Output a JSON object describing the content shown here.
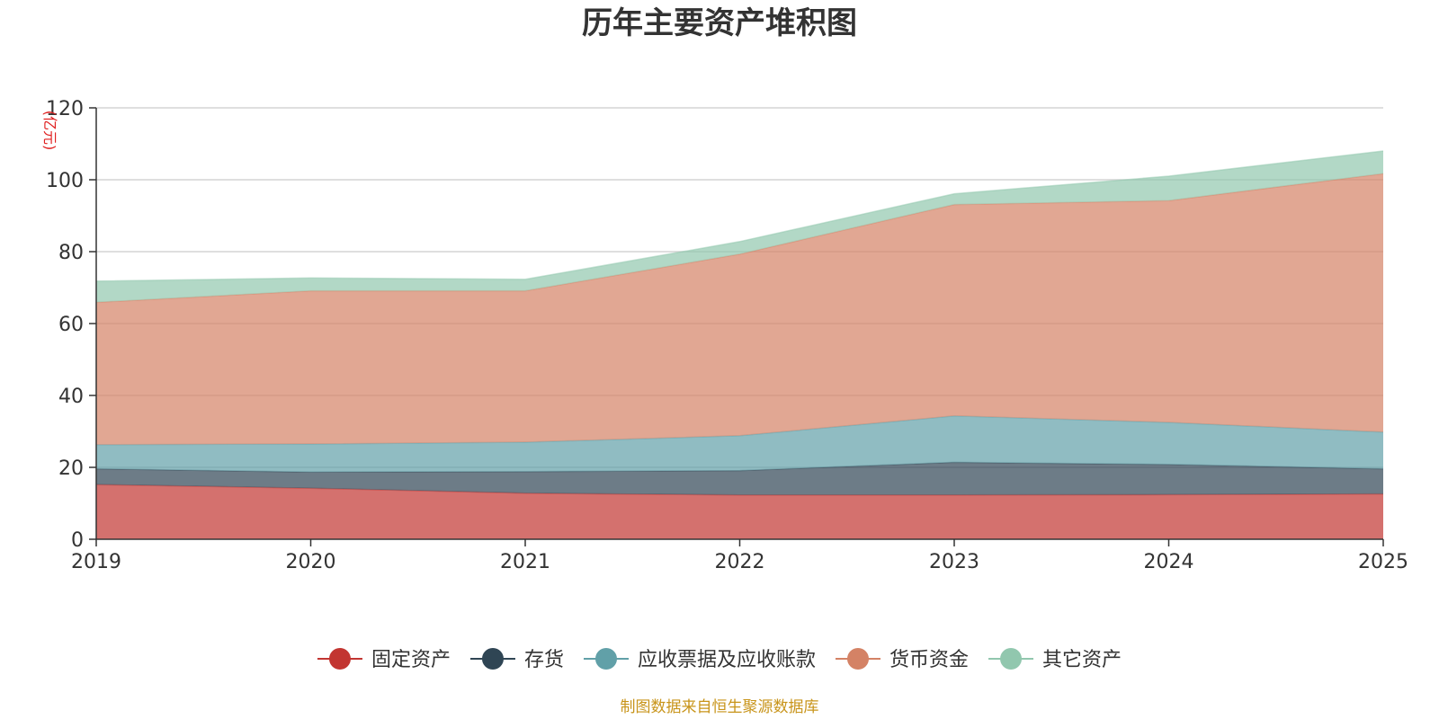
{
  "chart_data": {
    "type": "area",
    "stacked": true,
    "title": "历年主要资产堆积图",
    "unit": "(亿元)",
    "categories": [
      "2019",
      "2020",
      "2021",
      "2022",
      "2023",
      "2024",
      "2025"
    ],
    "ylim": [
      0,
      120
    ],
    "yticks": [
      "0",
      "20",
      "40",
      "60",
      "80",
      "100",
      "120"
    ],
    "grid": true,
    "legend_position": "bottom",
    "series": [
      {
        "name": "固定资产",
        "color": "#c23531",
        "values": [
          15.2,
          14.2,
          12.8,
          12.3,
          12.3,
          12.4,
          12.6
        ]
      },
      {
        "name": "存货",
        "color": "#2f4554",
        "values": [
          4.4,
          4.5,
          6.0,
          6.8,
          9.1,
          8.4,
          7.0
        ]
      },
      {
        "name": "应收票据及应收账款",
        "color": "#61a0a8",
        "values": [
          6.7,
          7.8,
          8.2,
          9.7,
          12.9,
          11.7,
          10.2
        ]
      },
      {
        "name": "货币资金",
        "color": "#d48265",
        "values": [
          39.6,
          42.6,
          42.1,
          50.5,
          58.8,
          61.7,
          71.9
        ]
      },
      {
        "name": "其它资产",
        "color": "#91c7ae",
        "values": [
          5.9,
          3.6,
          3.2,
          3.5,
          3.0,
          6.8,
          6.3
        ]
      }
    ],
    "source_note": "制图数据来自恒生聚源数据库"
  }
}
